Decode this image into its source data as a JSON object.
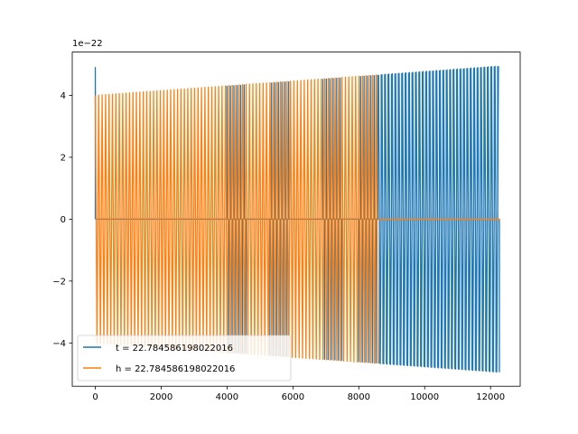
{
  "chart_data": {
    "type": "line",
    "title": "",
    "xlabel": "",
    "ylabel": "",
    "y_offset_label": "1e−22",
    "xlim": [
      -700,
      12900
    ],
    "ylim": [
      -5.4,
      5.4
    ],
    "x_ticks": [
      0,
      2000,
      4000,
      6000,
      8000,
      10000,
      12000
    ],
    "x_tick_labels": [
      "0",
      "2000",
      "4000",
      "6000",
      "8000",
      "10000",
      "12000"
    ],
    "y_ticks": [
      -4,
      -2,
      0,
      2,
      4
    ],
    "y_tick_labels": [
      "−4",
      "−2",
      "0",
      "2",
      "4"
    ],
    "grid": false,
    "legend_position": "lower-left",
    "series": [
      {
        "name": "t = 22.784586198022016",
        "color": "#1f77b4",
        "x_range": [
          0,
          12288
        ],
        "first_peak": 4.9,
        "amplitude_start": 4.0,
        "amplitude_end": 4.95,
        "mostly_zero_until": 4000,
        "burst_segments": [
          [
            4000,
            4600
          ],
          [
            5300,
            5900
          ],
          [
            6900,
            7500
          ],
          [
            8000,
            8600
          ]
        ],
        "full_oscillation_from": 8600
      },
      {
        "name": "h = 22.784586198022016",
        "color": "#ff7f0e",
        "x_range": [
          0,
          12288
        ],
        "amplitude_start": 4.0,
        "amplitude_end": 4.95,
        "oscillates_until": 8600,
        "flat_zero_after": 8600
      }
    ]
  }
}
